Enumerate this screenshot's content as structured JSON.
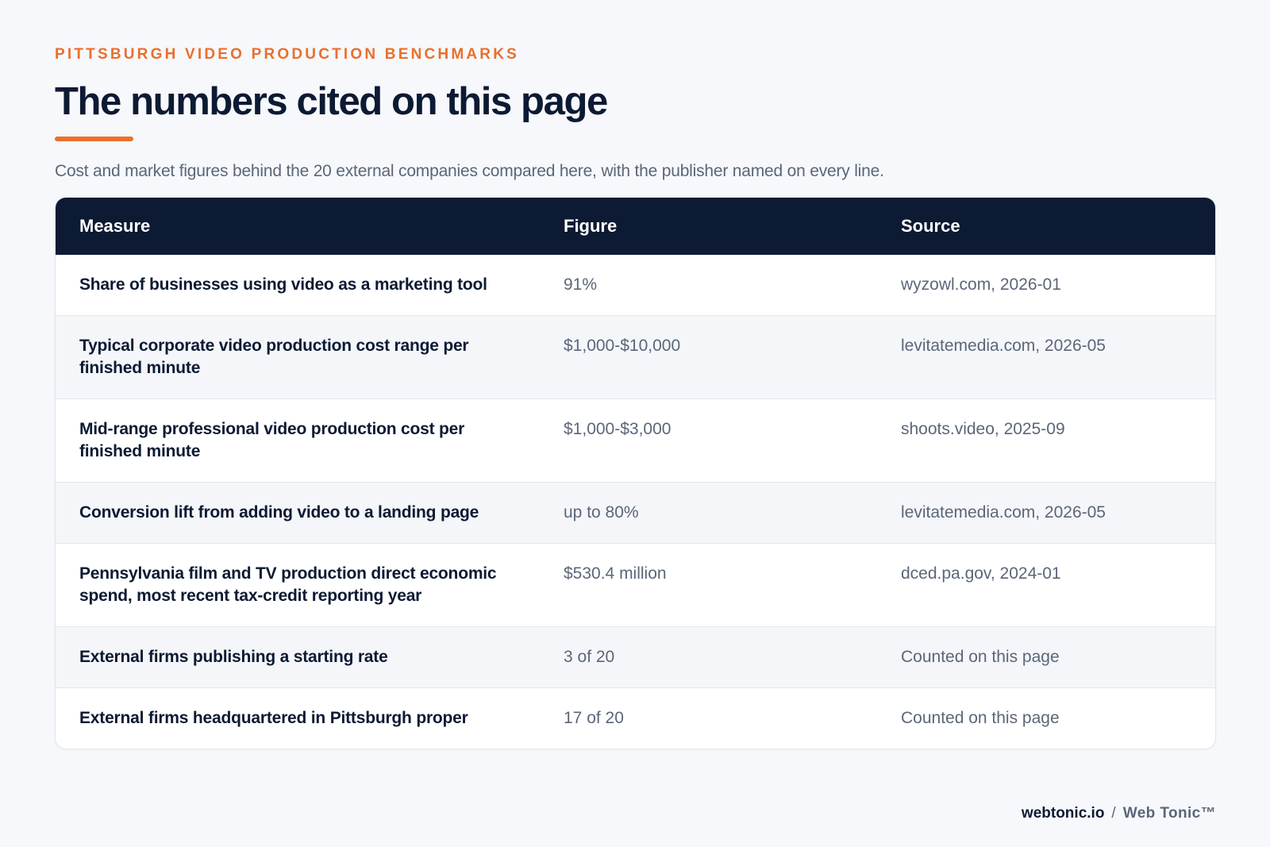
{
  "header": {
    "eyebrow": "PITTSBURGH VIDEO PRODUCTION BENCHMARKS",
    "title": "The numbers cited on this page",
    "subtitle": "Cost and market figures behind the 20 external companies compared here, with the publisher named on every line."
  },
  "table": {
    "columns": [
      "Measure",
      "Figure",
      "Source"
    ],
    "rows": [
      {
        "measure": "Share of businesses using video as a marketing tool",
        "figure": "91%",
        "source": "wyzowl.com, 2026-01"
      },
      {
        "measure": "Typical corporate video production cost range per finished minute",
        "figure": "$1,000-$10,000",
        "source": "levitatemedia.com, 2026-05"
      },
      {
        "measure": "Mid-range professional video production cost per finished minute",
        "figure": "$1,000-$3,000",
        "source": "shoots.video, 2025-09"
      },
      {
        "measure": "Conversion lift from adding video to a landing page",
        "figure": "up to 80%",
        "source": "levitatemedia.com, 2026-05"
      },
      {
        "measure": "Pennsylvania film and TV production direct economic spend, most recent tax-credit reporting year",
        "figure": "$530.4 million",
        "source": "dced.pa.gov, 2024-01"
      },
      {
        "measure": "External firms publishing a starting rate",
        "figure": "3 of 20",
        "source": "Counted on this page"
      },
      {
        "measure": "External firms headquartered in Pittsburgh proper",
        "figure": "17 of 20",
        "source": "Counted on this page"
      }
    ]
  },
  "footer": {
    "domain": "webtonic.io",
    "separator": "/",
    "brand": "Web Tonic™"
  },
  "colors": {
    "accent": "#ea6f2d",
    "navy": "#0c1a33",
    "muted": "#5b6678",
    "background": "#f6f8fb"
  }
}
